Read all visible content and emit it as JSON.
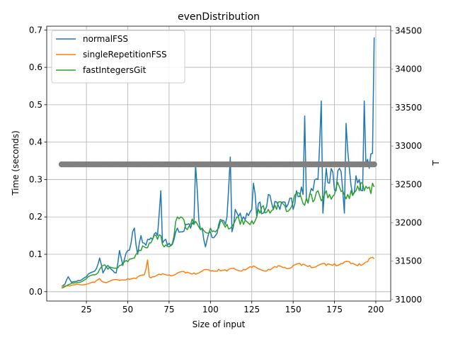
{
  "chart_data": {
    "type": "line",
    "title": "evenDistribution",
    "xlabel": "Size of input",
    "ylabel": "Time (seconds)",
    "y2label": "T",
    "xlim": [
      1,
      209
    ],
    "ylim": [
      -0.025,
      0.71
    ],
    "y2lim": [
      30980,
      34560
    ],
    "xticks": [
      25,
      50,
      75,
      100,
      125,
      150,
      175,
      200
    ],
    "yticks": [
      0.0,
      0.1,
      0.2,
      0.3,
      0.4,
      0.5,
      0.6,
      0.7
    ],
    "y2ticks": [
      31000,
      31500,
      32000,
      32500,
      33000,
      33500,
      34000,
      34500
    ],
    "grid": true,
    "legend_position": "upper-left",
    "colors": {
      "normalFSS": "#1f77b4",
      "singleRepetitionFSS": "#ff7f0e",
      "fastIntegersGit": "#2ca02c",
      "T": "#808080"
    },
    "x_range": [
      10,
      199
    ],
    "series": [
      {
        "name": "normalFSS",
        "color": "#1f77b4",
        "anchors": [
          [
            10,
            0.015
          ],
          [
            12,
            0.02
          ],
          [
            14,
            0.04
          ],
          [
            16,
            0.025
          ],
          [
            20,
            0.03
          ],
          [
            25,
            0.04
          ],
          [
            30,
            0.055
          ],
          [
            33,
            0.09
          ],
          [
            35,
            0.05
          ],
          [
            38,
            0.07
          ],
          [
            40,
            0.06
          ],
          [
            43,
            0.05
          ],
          [
            45,
            0.11
          ],
          [
            47,
            0.07
          ],
          [
            50,
            0.11
          ],
          [
            52,
            0.13
          ],
          [
            54,
            0.17
          ],
          [
            56,
            0.1
          ],
          [
            58,
            0.15
          ],
          [
            60,
            0.13
          ],
          [
            62,
            0.14
          ],
          [
            65,
            0.14
          ],
          [
            68,
            0.15
          ],
          [
            70,
            0.27
          ],
          [
            71,
            0.13
          ],
          [
            73,
            0.14
          ],
          [
            75,
            0.13
          ],
          [
            78,
            0.14
          ],
          [
            80,
            0.17
          ],
          [
            82,
            0.16
          ],
          [
            85,
            0.18
          ],
          [
            88,
            0.17
          ],
          [
            90,
            0.18
          ],
          [
            91,
            0.34
          ],
          [
            93,
            0.19
          ],
          [
            95,
            0.17
          ],
          [
            97,
            0.12
          ],
          [
            100,
            0.16
          ],
          [
            103,
            0.15
          ],
          [
            105,
            0.18
          ],
          [
            108,
            0.19
          ],
          [
            110,
            0.2
          ],
          [
            112,
            0.36
          ],
          [
            113,
            0.16
          ],
          [
            115,
            0.22
          ],
          [
            118,
            0.21
          ],
          [
            120,
            0.2
          ],
          [
            122,
            0.21
          ],
          [
            125,
            0.22
          ],
          [
            126,
            0.29
          ],
          [
            128,
            0.2
          ],
          [
            130,
            0.24
          ],
          [
            132,
            0.21
          ],
          [
            135,
            0.26
          ],
          [
            138,
            0.22
          ],
          [
            140,
            0.24
          ],
          [
            142,
            0.22
          ],
          [
            145,
            0.24
          ],
          [
            148,
            0.25
          ],
          [
            150,
            0.22
          ],
          [
            152,
            0.27
          ],
          [
            155,
            0.28
          ],
          [
            156,
            0.26
          ],
          [
            157,
            0.47
          ],
          [
            158,
            0.25
          ],
          [
            160,
            0.26
          ],
          [
            162,
            0.27
          ],
          [
            165,
            0.3
          ],
          [
            167,
            0.51
          ],
          [
            168,
            0.21
          ],
          [
            170,
            0.33
          ],
          [
            172,
            0.29
          ],
          [
            174,
            0.32
          ],
          [
            176,
            0.27
          ],
          [
            178,
            0.33
          ],
          [
            180,
            0.27
          ],
          [
            181,
            0.21
          ],
          [
            182,
            0.45
          ],
          [
            184,
            0.33
          ],
          [
            186,
            0.26
          ],
          [
            188,
            0.31
          ],
          [
            190,
            0.3
          ],
          [
            192,
            0.27
          ],
          [
            193,
            0.51
          ],
          [
            194,
            0.34
          ],
          [
            196,
            0.33
          ],
          [
            198,
            0.37
          ],
          [
            199,
            0.68
          ]
        ]
      },
      {
        "name": "singleRepetitionFSS",
        "color": "#ff7f0e",
        "anchors": [
          [
            10,
            0.015
          ],
          [
            15,
            0.015
          ],
          [
            20,
            0.02
          ],
          [
            25,
            0.02
          ],
          [
            30,
            0.025
          ],
          [
            33,
            0.035
          ],
          [
            36,
            0.025
          ],
          [
            40,
            0.03
          ],
          [
            45,
            0.03
          ],
          [
            50,
            0.035
          ],
          [
            55,
            0.035
          ],
          [
            60,
            0.045
          ],
          [
            62,
            0.085
          ],
          [
            63,
            0.04
          ],
          [
            65,
            0.04
          ],
          [
            70,
            0.045
          ],
          [
            75,
            0.045
          ],
          [
            80,
            0.05
          ],
          [
            85,
            0.05
          ],
          [
            90,
            0.05
          ],
          [
            95,
            0.055
          ],
          [
            100,
            0.055
          ],
          [
            105,
            0.06
          ],
          [
            110,
            0.055
          ],
          [
            115,
            0.06
          ],
          [
            120,
            0.06
          ],
          [
            125,
            0.065
          ],
          [
            130,
            0.06
          ],
          [
            135,
            0.06
          ],
          [
            140,
            0.065
          ],
          [
            145,
            0.065
          ],
          [
            150,
            0.07
          ],
          [
            155,
            0.07
          ],
          [
            160,
            0.07
          ],
          [
            165,
            0.07
          ],
          [
            170,
            0.07
          ],
          [
            175,
            0.075
          ],
          [
            180,
            0.075
          ],
          [
            185,
            0.075
          ],
          [
            190,
            0.075
          ],
          [
            195,
            0.08
          ],
          [
            199,
            0.088
          ]
        ]
      },
      {
        "name": "fastIntegersGit",
        "color": "#2ca02c",
        "anchors": [
          [
            10,
            0.01
          ],
          [
            15,
            0.02
          ],
          [
            20,
            0.025
          ],
          [
            25,
            0.035
          ],
          [
            30,
            0.045
          ],
          [
            33,
            0.06
          ],
          [
            35,
            0.07
          ],
          [
            38,
            0.06
          ],
          [
            40,
            0.065
          ],
          [
            45,
            0.07
          ],
          [
            50,
            0.08
          ],
          [
            55,
            0.1
          ],
          [
            58,
            0.11
          ],
          [
            60,
            0.12
          ],
          [
            63,
            0.13
          ],
          [
            65,
            0.14
          ],
          [
            68,
            0.14
          ],
          [
            70,
            0.15
          ],
          [
            72,
            0.12
          ],
          [
            75,
            0.12
          ],
          [
            78,
            0.15
          ],
          [
            80,
            0.2
          ],
          [
            82,
            0.2
          ],
          [
            85,
            0.17
          ],
          [
            88,
            0.18
          ],
          [
            90,
            0.18
          ],
          [
            95,
            0.17
          ],
          [
            100,
            0.17
          ],
          [
            103,
            0.16
          ],
          [
            105,
            0.17
          ],
          [
            108,
            0.18
          ],
          [
            110,
            0.18
          ],
          [
            115,
            0.19
          ],
          [
            118,
            0.18
          ],
          [
            120,
            0.18
          ],
          [
            125,
            0.19
          ],
          [
            128,
            0.2
          ],
          [
            130,
            0.21
          ],
          [
            132,
            0.23
          ],
          [
            135,
            0.22
          ],
          [
            138,
            0.22
          ],
          [
            140,
            0.22
          ],
          [
            145,
            0.23
          ],
          [
            150,
            0.24
          ],
          [
            155,
            0.25
          ],
          [
            158,
            0.25
          ],
          [
            160,
            0.26
          ],
          [
            162,
            0.24
          ],
          [
            165,
            0.27
          ],
          [
            168,
            0.25
          ],
          [
            170,
            0.27
          ],
          [
            172,
            0.26
          ],
          [
            175,
            0.26
          ],
          [
            178,
            0.28
          ],
          [
            180,
            0.27
          ],
          [
            183,
            0.26
          ],
          [
            185,
            0.27
          ],
          [
            188,
            0.27
          ],
          [
            190,
            0.27
          ],
          [
            193,
            0.27
          ],
          [
            196,
            0.28
          ],
          [
            198,
            0.29
          ],
          [
            199,
            0.28
          ]
        ]
      },
      {
        "name": "T",
        "axis": "right",
        "color": "#808080",
        "constant": 32760
      }
    ]
  }
}
